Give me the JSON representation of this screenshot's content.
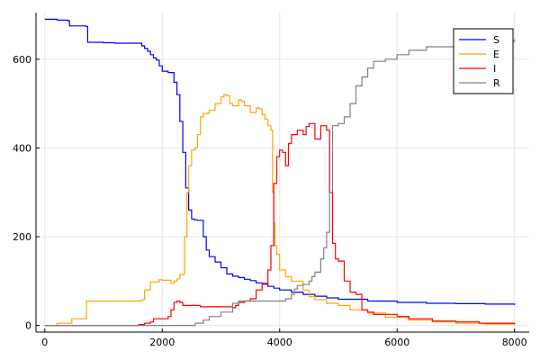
{
  "chart_data": {
    "type": "line",
    "title": "",
    "xlabel": "",
    "ylabel": "",
    "xlim": [
      -150,
      8250
    ],
    "ylim": [
      -15,
      705
    ],
    "xticks": [
      0,
      2000,
      4000,
      6000,
      8000
    ],
    "xtick_labels": [
      "0",
      "2000",
      "4000",
      "6000",
      "8000"
    ],
    "yticks": [
      0,
      200,
      400,
      600
    ],
    "ytick_labels": [
      "0",
      "200",
      "400",
      "600"
    ],
    "grid": true,
    "legend_position": "top-right",
    "series": [
      {
        "name": "S",
        "color": "#0000ff",
        "x": [
          0,
          200,
          210,
          400,
          420,
          700,
          730,
          1000,
          1200,
          1400,
          1600,
          1650,
          1700,
          1750,
          1800,
          1850,
          1900,
          1950,
          2000,
          2100,
          2200,
          2250,
          2300,
          2350,
          2400,
          2450,
          2500,
          2550,
          2600,
          2700,
          2750,
          2800,
          2900,
          3000,
          3100,
          3200,
          3300,
          3400,
          3500,
          3600,
          3700,
          3800,
          3900,
          4000,
          4200,
          4400,
          4600,
          4800,
          5000,
          5500,
          6000,
          6500,
          7000,
          7500,
          8000
        ],
        "y": [
          690,
          690,
          688,
          686,
          675,
          674,
          638,
          637,
          636,
          636,
          636,
          630,
          624,
          618,
          610,
          603,
          598,
          585,
          573,
          570,
          548,
          520,
          460,
          390,
          310,
          260,
          240,
          238,
          237,
          200,
          170,
          155,
          143,
          130,
          116,
          111,
          108,
          104,
          101,
          96,
          93,
          88,
          84,
          80,
          75,
          70,
          66,
          62,
          59,
          55,
          52,
          50,
          49,
          48,
          46
        ]
      },
      {
        "name": "E",
        "color": "#ffa500",
        "x": [
          0,
          200,
          210,
          450,
          460,
          700,
          710,
          1650,
          1660,
          1700,
          1800,
          1950,
          2000,
          2150,
          2200,
          2250,
          2300,
          2380,
          2420,
          2450,
          2500,
          2560,
          2600,
          2650,
          2700,
          2800,
          2900,
          3000,
          3050,
          3100,
          3150,
          3200,
          3300,
          3350,
          3400,
          3500,
          3600,
          3650,
          3700,
          3750,
          3800,
          3850,
          3880,
          3900,
          3920,
          3950,
          4000,
          4100,
          4200,
          4400,
          4500,
          4600,
          4800,
          5000,
          5200,
          5500,
          5800,
          6200,
          6600,
          7000,
          7500,
          8000
        ],
        "y": [
          0,
          0,
          5,
          5,
          15,
          15,
          55,
          55,
          58,
          80,
          98,
          103,
          102,
          95,
          100,
          105,
          115,
          200,
          300,
          360,
          395,
          400,
          430,
          470,
          478,
          485,
          500,
          515,
          520,
          518,
          500,
          495,
          508,
          505,
          495,
          480,
          490,
          488,
          475,
          465,
          450,
          440,
          300,
          230,
          180,
          160,
          125,
          110,
          100,
          80,
          65,
          58,
          50,
          45,
          35,
          28,
          18,
          12,
          8,
          5,
          3,
          2
        ]
      },
      {
        "name": "I",
        "color": "#ff0000",
        "x": [
          0,
          1500,
          1600,
          1700,
          1800,
          1850,
          2100,
          2150,
          2200,
          2250,
          2300,
          2350,
          2600,
          2650,
          3200,
          3250,
          3300,
          3400,
          3500,
          3600,
          3700,
          3800,
          3850,
          3900,
          3950,
          4000,
          4050,
          4100,
          4150,
          4200,
          4300,
          4400,
          4450,
          4500,
          4600,
          4700,
          4800,
          4850,
          4900,
          4950,
          5000,
          5100,
          5200,
          5300,
          5400,
          5500,
          5600,
          6000,
          6200,
          6600,
          7000,
          7400,
          8000
        ],
        "y": [
          0,
          0,
          2,
          5,
          8,
          15,
          20,
          35,
          52,
          55,
          52,
          45,
          45,
          42,
          40,
          45,
          52,
          55,
          60,
          80,
          95,
          125,
          180,
          320,
          380,
          395,
          390,
          360,
          410,
          430,
          440,
          430,
          448,
          455,
          420,
          450,
          440,
          300,
          185,
          150,
          145,
          100,
          75,
          70,
          35,
          30,
          25,
          20,
          15,
          10,
          8,
          5,
          3
        ]
      },
      {
        "name": "R",
        "color": "#808080",
        "x": [
          0,
          2000,
          2200,
          2500,
          2560,
          2700,
          2800,
          3000,
          3200,
          3300,
          3400,
          3600,
          4000,
          4100,
          4200,
          4250,
          4300,
          4400,
          4500,
          4550,
          4600,
          4700,
          4750,
          4800,
          4850,
          4900,
          5000,
          5100,
          5200,
          5300,
          5400,
          5500,
          5600,
          5800,
          6000,
          6200,
          6500,
          7000,
          7500,
          8000
        ],
        "y": [
          0,
          0,
          0,
          0,
          5,
          12,
          20,
          30,
          50,
          55,
          55,
          55,
          55,
          60,
          70,
          82,
          90,
          92,
          100,
          110,
          120,
          150,
          175,
          210,
          300,
          450,
          455,
          470,
          500,
          540,
          560,
          580,
          595,
          600,
          610,
          620,
          628,
          635,
          640,
          645
        ]
      }
    ]
  }
}
